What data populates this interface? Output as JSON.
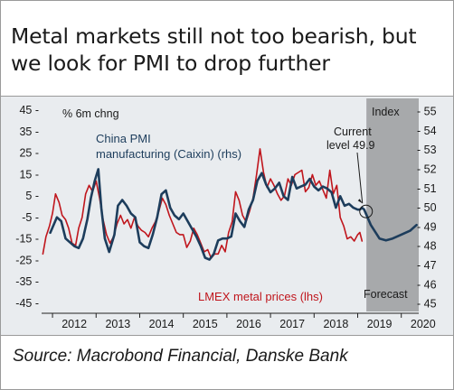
{
  "title_line1": "Metal markets still not too bearish, but",
  "title_line2": "we look for PMI to drop further",
  "source": "Source: Macrobond Financial, Danske Bank",
  "colors": {
    "pmi": "#1d3d5c",
    "lmex": "#c0161d",
    "forecast_shade": "#a7a9ab",
    "panel": "#e9ecef",
    "axis": "#222222"
  },
  "chart_data": {
    "type": "line",
    "left_axis_label": "% 6m chng",
    "right_axis_label": "Index",
    "left_ticks": [
      45,
      35,
      25,
      15,
      5,
      -5,
      -15,
      -25,
      -35,
      -45
    ],
    "left_tick_labels": [
      "45 -",
      "35 -",
      "25 -",
      "15 -",
      "5 -",
      "-5 -",
      "-15 -",
      "-25 -",
      "-35 -",
      "-45 -"
    ],
    "ylim_left": [
      -48,
      48
    ],
    "right_ticks": [
      55,
      54,
      53,
      52,
      51,
      50,
      49,
      48,
      47,
      46,
      45
    ],
    "right_tick_labels": [
      "- 55",
      "- 54",
      "- 53",
      "- 52",
      "- 51",
      "- 50",
      "- 49",
      "- 48",
      "- 47",
      "- 46",
      "- 45"
    ],
    "ylim_right": [
      44.7,
      55.4
    ],
    "x_range": [
      2011.75,
      2020.4
    ],
    "x_ticks": [
      2012,
      2013,
      2014,
      2015,
      2016,
      2017,
      2018,
      2019,
      2020
    ],
    "x_tick_labels": [
      "2012",
      "2013",
      "2014",
      "2015",
      "2016",
      "2017",
      "2018",
      "2019",
      "2020"
    ],
    "forecast_start": 2019.2,
    "forecast_label": "Forecast",
    "annotation": {
      "line1": "Current",
      "line2": "level 49.9",
      "x": 2019.15,
      "y": 49.9
    },
    "series": [
      {
        "name": "China PMI manufacturing (Caixin) (rhs)",
        "label_line1": "China PMI",
        "label_line2": "manufacturing (Caixin)  (rhs)",
        "axis": "right",
        "x": [
          2011.95,
          2012.1,
          2012.2,
          2012.3,
          2012.4,
          2012.5,
          2012.6,
          2012.7,
          2012.8,
          2012.88,
          2012.97,
          2013.05,
          2013.12,
          2013.2,
          2013.3,
          2013.42,
          2013.5,
          2013.6,
          2013.7,
          2013.8,
          2013.9,
          2014.0,
          2014.1,
          2014.2,
          2014.3,
          2014.4,
          2014.5,
          2014.6,
          2014.7,
          2014.8,
          2014.9,
          2015.0,
          2015.1,
          2015.2,
          2015.3,
          2015.4,
          2015.5,
          2015.6,
          2015.7,
          2015.8,
          2015.9,
          2016.0,
          2016.1,
          2016.2,
          2016.3,
          2016.4,
          2016.5,
          2016.6,
          2016.7,
          2016.8,
          2016.9,
          2017.0,
          2017.1,
          2017.2,
          2017.3,
          2017.4,
          2017.5,
          2017.6,
          2017.7,
          2017.8,
          2017.9,
          2018.0,
          2018.1,
          2018.2,
          2018.3,
          2018.4,
          2018.5,
          2018.6,
          2018.7,
          2018.8,
          2018.9,
          2019.0,
          2019.05,
          2019.1,
          2019.15
        ],
        "y": [
          48.7,
          49.5,
          49.3,
          48.4,
          48.2,
          48.0,
          47.9,
          48.4,
          49.4,
          50.5,
          51.4,
          52.0,
          50.0,
          48.4,
          47.7,
          48.6,
          50.1,
          50.4,
          50.1,
          49.7,
          49.5,
          48.2,
          48.0,
          47.9,
          48.6,
          49.5,
          50.7,
          50.9,
          50.0,
          49.6,
          49.4,
          49.7,
          49.3,
          48.9,
          48.5,
          48.0,
          47.4,
          47.3,
          47.6,
          48.3,
          48.4,
          48.4,
          48.5,
          49.7,
          49.3,
          49.0,
          49.9,
          50.4,
          51.4,
          51.8,
          51.2,
          50.8,
          51.0,
          51.3,
          50.6,
          50.4,
          51.6,
          51.0,
          51.1,
          51.2,
          51.5,
          51.1,
          50.9,
          51.1,
          51.0,
          50.8,
          50.0,
          50.6,
          50.1,
          50.2,
          50.0,
          49.9,
          49.9,
          50.0,
          49.9
        ]
      },
      {
        "name": "Forecast",
        "axis": "right",
        "dashed": false,
        "x": [
          2019.15,
          2019.3,
          2019.5,
          2019.65,
          2019.8,
          2020.0,
          2020.2,
          2020.35
        ],
        "y": [
          49.9,
          49.1,
          48.4,
          48.3,
          48.4,
          48.6,
          48.8,
          49.1
        ]
      },
      {
        "name": "LMEX metal prices (lhs)",
        "label": "LMEX metal prices (lhs)",
        "axis": "left",
        "x": [
          2011.78,
          2011.85,
          2011.93,
          2012.0,
          2012.07,
          2012.15,
          2012.22,
          2012.3,
          2012.37,
          2012.45,
          2012.53,
          2012.6,
          2012.68,
          2012.76,
          2012.84,
          2012.92,
          2013.0,
          2013.08,
          2013.16,
          2013.24,
          2013.32,
          2013.4,
          2013.48,
          2013.56,
          2013.64,
          2013.72,
          2013.8,
          2013.88,
          2013.96,
          2014.04,
          2014.12,
          2014.2,
          2014.28,
          2014.36,
          2014.44,
          2014.52,
          2014.6,
          2014.68,
          2014.76,
          2014.84,
          2014.92,
          2015.0,
          2015.08,
          2015.16,
          2015.24,
          2015.32,
          2015.4,
          2015.48,
          2015.56,
          2015.64,
          2015.72,
          2015.8,
          2015.88,
          2015.96,
          2016.04,
          2016.12,
          2016.2,
          2016.28,
          2016.36,
          2016.44,
          2016.52,
          2016.6,
          2016.68,
          2016.76,
          2016.84,
          2016.92,
          2017.0,
          2017.08,
          2017.16,
          2017.24,
          2017.32,
          2017.4,
          2017.48,
          2017.56,
          2017.64,
          2017.72,
          2017.8,
          2017.88,
          2017.96,
          2018.04,
          2018.12,
          2018.2,
          2018.28,
          2018.36,
          2018.44,
          2018.52,
          2018.6,
          2018.68,
          2018.76,
          2018.84,
          2018.92,
          2019.0,
          2019.05,
          2019.1
        ],
        "y": [
          -22,
          -14,
          -9,
          -3,
          6,
          2,
          -4,
          -6,
          -10,
          -17,
          -18,
          -10,
          -5,
          6,
          10,
          7,
          12,
          4,
          -6,
          -13,
          -17,
          -14,
          -8,
          -4,
          -8,
          -6,
          -10,
          -5,
          -9,
          -11,
          -12,
          -14,
          -10,
          -7,
          -2,
          4,
          1,
          -4,
          -8,
          -12,
          -13,
          -13,
          -19,
          -16,
          -10,
          -13,
          -17,
          -21,
          -20,
          -24,
          -22,
          -22,
          -18,
          -21,
          -12,
          -7,
          7,
          3,
          -4,
          -7,
          -2,
          4,
          15,
          27,
          16,
          9,
          13,
          10,
          6,
          3,
          5,
          13,
          10,
          15,
          16,
          17,
          7,
          9,
          15,
          10,
          12,
          8,
          4,
          17,
          6,
          10,
          -5,
          -9,
          -15,
          -14,
          -16,
          -13,
          -12,
          -16
        ]
      }
    ]
  }
}
